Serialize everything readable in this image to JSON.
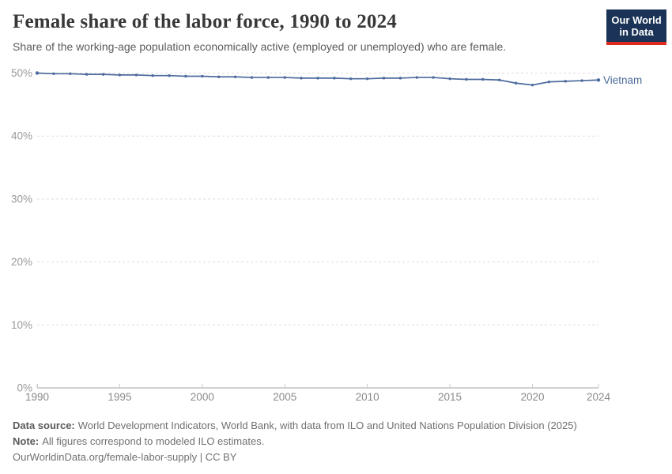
{
  "header": {
    "title": "Female share of the labor force, 1990 to 2024",
    "subtitle": "Share of the working-age population economically active (employed or unemployed) who are female."
  },
  "logo": {
    "line1": "Our World",
    "line2": "in Data"
  },
  "chart_data": {
    "type": "line",
    "title": "Female share of the labor force, 1990 to 2024",
    "xlabel": "",
    "ylabel": "",
    "xlim": [
      1990,
      2024
    ],
    "ylim": [
      0,
      50
    ],
    "xticks": [
      1990,
      1995,
      2000,
      2005,
      2010,
      2015,
      2020,
      2024
    ],
    "yticks": [
      0,
      10,
      20,
      30,
      40,
      50
    ],
    "ytick_suffix": "%",
    "grid": "horizontal-dashed",
    "legend_position": "end-of-line-label",
    "x": [
      1990,
      1991,
      1992,
      1993,
      1994,
      1995,
      1996,
      1997,
      1998,
      1999,
      2000,
      2001,
      2002,
      2003,
      2004,
      2005,
      2006,
      2007,
      2008,
      2009,
      2010,
      2011,
      2012,
      2013,
      2014,
      2015,
      2016,
      2017,
      2018,
      2019,
      2020,
      2021,
      2022,
      2023,
      2024
    ],
    "series": [
      {
        "name": "Vietnam",
        "color": "#4c6a9c",
        "values": [
          50.0,
          49.9,
          49.9,
          49.8,
          49.8,
          49.7,
          49.7,
          49.6,
          49.6,
          49.5,
          49.5,
          49.4,
          49.4,
          49.3,
          49.3,
          49.3,
          49.2,
          49.2,
          49.2,
          49.1,
          49.1,
          49.2,
          49.2,
          49.3,
          49.3,
          49.1,
          49.0,
          49.0,
          48.9,
          48.4,
          48.1,
          48.6,
          48.7,
          48.8,
          48.9
        ]
      }
    ]
  },
  "colors": {
    "line": "#4c6a9c",
    "grid": "#dedede",
    "axis": "#a5a5a5",
    "tick": "#c9c9c9",
    "ytick_label": "#999999",
    "xtick_label": "#8a8a8a"
  },
  "footer": {
    "source_label": "Data source:",
    "source_text": "World Development Indicators, World Bank, with data from ILO and United Nations Population Division (2025)",
    "note_label": "Note:",
    "note_text": "All figures correspond to modeled ILO estimates.",
    "url": "OurWorldinData.org/female-labor-supply",
    "separator": " | ",
    "license": "CC BY"
  }
}
